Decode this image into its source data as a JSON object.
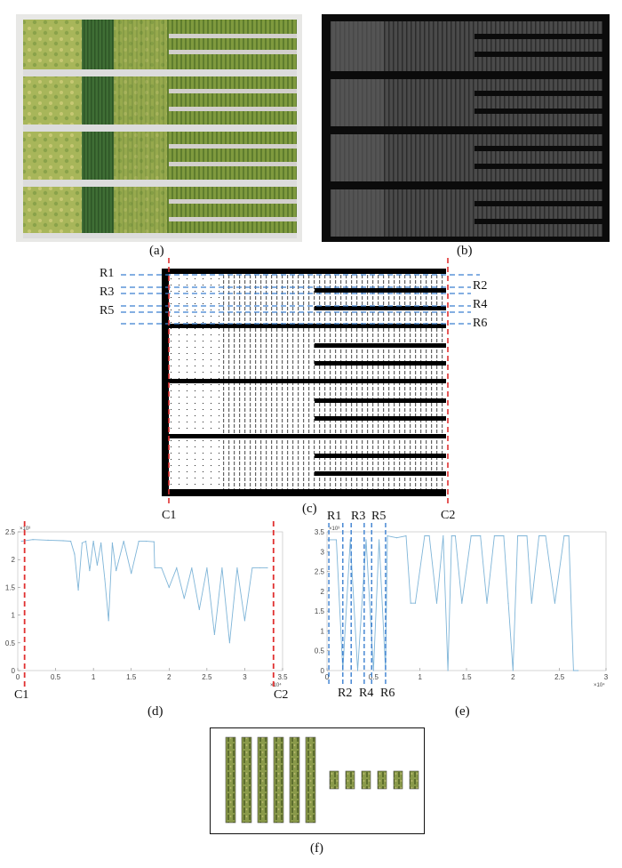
{
  "figure": {
    "captions": {
      "a": "(a)",
      "b": "(b)",
      "c": "(c)",
      "d": "(d)",
      "e": "(e)",
      "f": "(f)"
    },
    "row_labels_left": [
      "R1",
      "R3",
      "R5"
    ],
    "row_labels_right": [
      "R2",
      "R4",
      "R6"
    ],
    "col_labels": [
      "C1",
      "C2"
    ],
    "plot_d_labels": [
      "C1",
      "C2"
    ],
    "plot_e_top_labels": [
      "R1",
      "R3",
      "R5"
    ],
    "plot_e_bottom_labels": [
      "R2",
      "R4",
      "R6"
    ]
  },
  "colors": {
    "dashed_red": "#e03030",
    "dashed_blue": "#3a7fd0",
    "curve": "#7fb5d8",
    "field_green": "#8aa24a",
    "dark_green": "#3f6e35"
  },
  "chart_data": [
    {
      "type": "line",
      "panel": "d",
      "x_ticks": [
        "0",
        "0.5",
        "1",
        "1.5",
        "2",
        "2.5",
        "3",
        "3.5"
      ],
      "y_ticks": [
        "0",
        "0.5",
        "1",
        "1.5",
        "2",
        "2.5"
      ],
      "x_exponent": "×10⁴",
      "y_exponent": "×10³",
      "xlim": [
        0,
        35000
      ],
      "ylim": [
        0,
        2500
      ],
      "series": [
        {
          "x": [
            500,
            2000,
            4000,
            6000,
            7000,
            7500,
            8000,
            8500,
            9000,
            9500,
            10000,
            10500,
            11000,
            11500,
            12000,
            12500,
            13000,
            14000,
            15000,
            16000,
            17000,
            18000,
            18100,
            19000,
            20000,
            21000,
            22000,
            23000,
            24000,
            25000,
            26000,
            27000,
            28000,
            29000,
            30000,
            31000,
            32000,
            33000
          ],
          "y": [
            2330,
            2360,
            2350,
            2340,
            2330,
            2100,
            1450,
            2300,
            2330,
            1800,
            2330,
            1900,
            2300,
            1650,
            900,
            2300,
            1800,
            2330,
            1750,
            2330,
            2330,
            2320,
            1850,
            1850,
            1500,
            1850,
            1300,
            1850,
            1100,
            1850,
            650,
            1850,
            500,
            1850,
            900,
            1850,
            1850,
            1850
          ]
        }
      ]
    },
    {
      "type": "line",
      "panel": "e",
      "x_ticks": [
        "0",
        "0.5",
        "1",
        "1.5",
        "2",
        "2.5",
        "3"
      ],
      "y_ticks": [
        "0",
        "0.5",
        "1",
        "1.5",
        "2",
        "2.5",
        "3",
        "3.5"
      ],
      "x_exponent": "×10⁴",
      "y_exponent": "×10³",
      "xlim": [
        0,
        30000
      ],
      "ylim": [
        0,
        3500
      ],
      "series": [
        {
          "x": [
            100,
            300,
            1000,
            1700,
            2500,
            3300,
            4200,
            5000,
            5600,
            6300,
            6500,
            7500,
            8500,
            9000,
            9500,
            10500,
            11000,
            11800,
            12500,
            13000,
            13400,
            13800,
            14500,
            15500,
            16000,
            16500,
            17200,
            18000,
            19000,
            19500,
            20000,
            20500,
            21500,
            22000,
            22800,
            23500,
            24500,
            25500,
            26000,
            26500,
            27000
          ],
          "y": [
            3300,
            3300,
            3300,
            0,
            3300,
            0,
            3300,
            0,
            3300,
            0,
            3400,
            3350,
            3400,
            1700,
            1700,
            3400,
            3400,
            1700,
            3400,
            0,
            3400,
            3400,
            1700,
            3400,
            3400,
            3400,
            1700,
            3400,
            3400,
            1700,
            0,
            3400,
            3400,
            1700,
            3400,
            3400,
            1700,
            3400,
            3400,
            0,
            0
          ]
        }
      ]
    }
  ]
}
